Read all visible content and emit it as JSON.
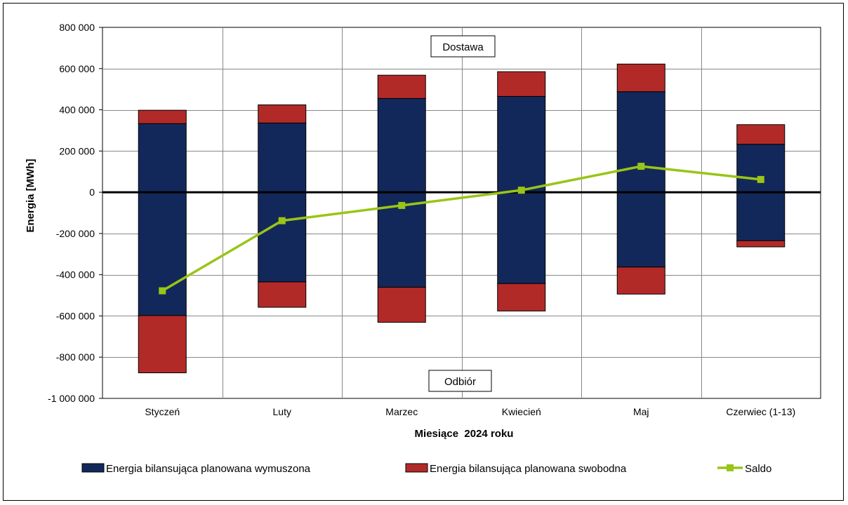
{
  "chart_data": {
    "type": "bar",
    "stacked": true,
    "categories": [
      "Styczeń",
      "Luty",
      "Marzec",
      "Kwiecień",
      "Maj",
      "Czerwiec (1-13)"
    ],
    "series": [
      {
        "name": "Energia bilansująca planowana wymuszona",
        "color": "#13285a",
        "positive": [
          333000,
          336000,
          455000,
          465000,
          488000,
          233000
        ],
        "negative": [
          -598000,
          -435000,
          -461000,
          -443000,
          -363000,
          -235000
        ]
      },
      {
        "name": "Energia bilansująca planowana swobodna",
        "color": "#b22a28",
        "positive": [
          65000,
          88000,
          113000,
          120000,
          134000,
          95000
        ],
        "negative": [
          -278000,
          -123000,
          -170000,
          -133000,
          -131000,
          -30000
        ]
      },
      {
        "name": "Saldo",
        "type": "line",
        "color": "#99c516",
        "values": [
          -478000,
          -138000,
          -64000,
          10000,
          126000,
          62000
        ]
      }
    ],
    "xlabel": "Miesiące  2024 roku",
    "ylabel": "Energia [MWh]",
    "ylim": [
      -1000000,
      800000
    ],
    "yticks": [
      800000,
      600000,
      400000,
      200000,
      0,
      -200000,
      -400000,
      -600000,
      -800000,
      -1000000
    ],
    "ytick_labels": [
      "800 000",
      "600 000",
      "400 000",
      "200 000",
      "0",
      "-200 000",
      "-400 000",
      "-600 000",
      "-800 000",
      "-1 000 000"
    ],
    "annotations": [
      "Dostawa",
      "Odbiór"
    ],
    "grid": true,
    "legend_position": "bottom"
  }
}
